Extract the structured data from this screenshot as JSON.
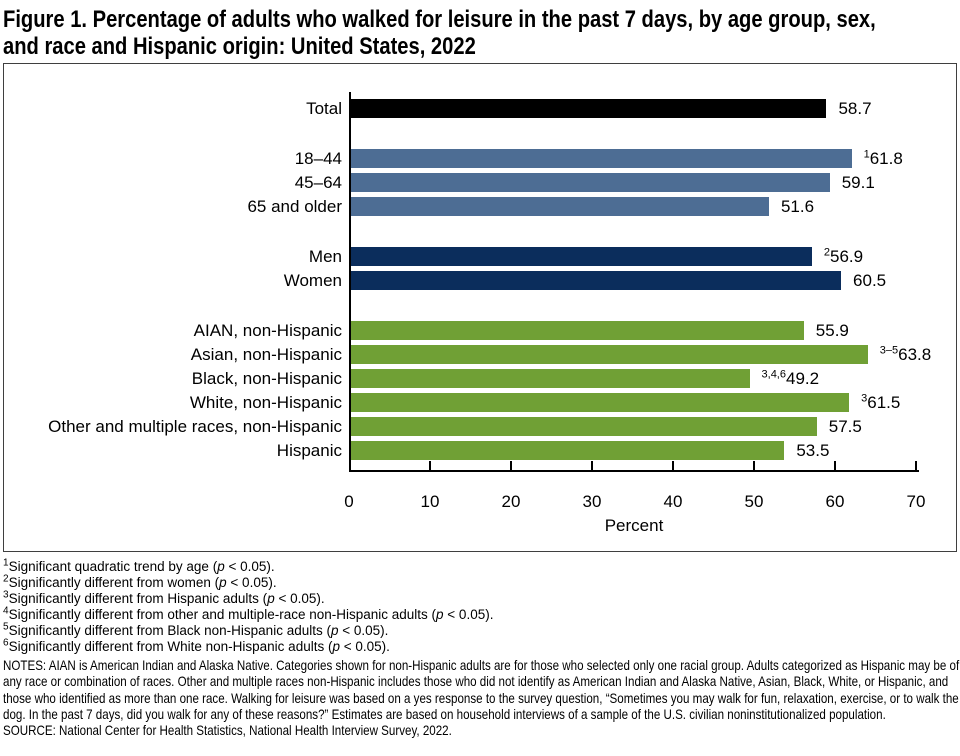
{
  "figure": {
    "title_line1": "Figure 1. Percentage of adults who walked for leisure in the past 7 days, by age group, sex,",
    "title_line2": "and race and Hispanic origin: United States, 2022"
  },
  "chart_data": {
    "type": "bar",
    "orientation": "horizontal",
    "xlabel": "Percent",
    "xlim": [
      0,
      70
    ],
    "xticks": [
      0,
      10,
      20,
      30,
      40,
      50,
      60,
      70
    ],
    "grid": false,
    "legend": "none",
    "groups": [
      {
        "name": "total",
        "color": "#000000",
        "bars": [
          {
            "label": "Total",
            "value": 58.7,
            "value_label": "58.7",
            "sup": ""
          }
        ]
      },
      {
        "name": "age-group",
        "color": "#4d6d94",
        "bars": [
          {
            "label": "18–44",
            "value": 61.8,
            "value_label": "61.8",
            "sup": "1"
          },
          {
            "label": "45–64",
            "value": 59.1,
            "value_label": "59.1",
            "sup": ""
          },
          {
            "label": "65 and older",
            "value": 51.6,
            "value_label": "51.6",
            "sup": ""
          }
        ]
      },
      {
        "name": "sex",
        "color": "#0b2d5c",
        "bars": [
          {
            "label": "Men",
            "value": 56.9,
            "value_label": "56.9",
            "sup": "2"
          },
          {
            "label": "Women",
            "value": 60.5,
            "value_label": "60.5",
            "sup": ""
          }
        ]
      },
      {
        "name": "race-hispanic-origin",
        "color": "#70a035",
        "bars": [
          {
            "label": "AIAN, non-Hispanic",
            "value": 55.9,
            "value_label": "55.9",
            "sup": ""
          },
          {
            "label": "Asian, non-Hispanic",
            "value": 63.8,
            "value_label": "63.8",
            "sup": "3–5"
          },
          {
            "label": "Black, non-Hispanic",
            "value": 49.2,
            "value_label": "49.2",
            "sup": "3,4,6"
          },
          {
            "label": "White, non-Hispanic",
            "value": 61.5,
            "value_label": "61.5",
            "sup": "3"
          },
          {
            "label": "Other and multiple races, non-Hispanic",
            "value": 57.5,
            "value_label": "57.5",
            "sup": ""
          },
          {
            "label": "Hispanic",
            "value": 53.5,
            "value_label": "53.5",
            "sup": ""
          }
        ]
      }
    ]
  },
  "footnotes": [
    {
      "sup": "1",
      "before": "Significant quadratic trend by age (",
      "p": "p",
      "after": " < 0.05)."
    },
    {
      "sup": "2",
      "before": "Significantly different from women (",
      "p": "p",
      "after": " < 0.05)."
    },
    {
      "sup": "3",
      "before": "Significantly different from Hispanic adults (",
      "p": "p",
      "after": " < 0.05)."
    },
    {
      "sup": "4",
      "before": "Significantly different from other and multiple-race non-Hispanic adults (",
      "p": "p",
      "after": " < 0.05)."
    },
    {
      "sup": "5",
      "before": "Significantly different from Black non-Hispanic adults (",
      "p": "p",
      "after": " < 0.05)."
    },
    {
      "sup": "6",
      "before": "Significantly different from White non-Hispanic adults (",
      "p": "p",
      "after": " < 0.05)."
    }
  ],
  "notes": "NOTES: AIAN is American Indian and Alaska Native. Categories shown for non-Hispanic adults are for those who selected only one racial group. Adults categorized as Hispanic may be of any race or combination of races. Other and multiple races non-Hispanic includes those who did not identify as American Indian and Alaska Native, Asian, Black, White, or Hispanic, and those who identified as more than one race. Walking for leisure was based on a yes response to the survey question, “Sometimes you may walk for fun, relaxation, exercise, or to walk the dog. In the past 7 days, did you walk for any of these reasons?” Estimates are based on household interviews of a sample of the U.S. civilian noninstitutionalized population.",
  "source": "SOURCE: National Center for Health Statistics, National Health Interview Survey, 2022."
}
